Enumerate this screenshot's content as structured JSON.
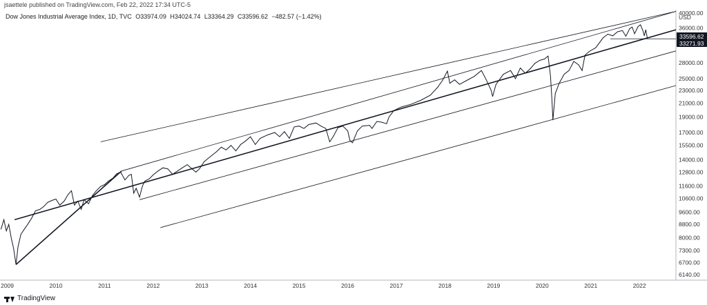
{
  "header": {
    "publisher": "jsaettele published on TradingView.com, Feb 22, 2022 17:34 UTC-5"
  },
  "legend": {
    "symbol": "Dow Jones Industrial Average Index, 1D, TVC",
    "open": "O33974.09",
    "high": "H34024.74",
    "low": "L33364.29",
    "close": "C33596.62",
    "change": "−482.57 (−1.42%)"
  },
  "footer": {
    "brand": "TradingView"
  },
  "chart_data": {
    "type": "line",
    "title": "Dow Jones Industrial Average Index, 1D, TVC",
    "log_scale": true,
    "currency": "USD",
    "x_range": [
      2008.85,
      2022.75
    ],
    "y_range": [
      5900,
      41000
    ],
    "y_ticks": [
      "40000.00",
      "36000.00",
      "33596.62",
      "33271.93",
      "28000.00",
      "25000.00",
      "23000.00",
      "21000.00",
      "19000.00",
      "17000.00",
      "15500.00",
      "14000.00",
      "12800.00",
      "11600.00",
      "10600.00",
      "9600.00",
      "8800.00",
      "8000.00",
      "7300.00",
      "6700.00",
      "6140.00"
    ],
    "y_tick_values": [
      40000,
      36000,
      28000,
      25000,
      23000,
      21000,
      19000,
      17000,
      15500,
      14000,
      12800,
      11600,
      10600,
      9600,
      8800,
      8000,
      7300,
      6700,
      6140
    ],
    "x_ticks": [
      "2009",
      "2010",
      "2011",
      "2012",
      "2013",
      "2014",
      "2015",
      "2016",
      "2017",
      "2018",
      "2019",
      "2020",
      "2021",
      "2022"
    ],
    "x_tick_values": [
      2009,
      2010,
      2011,
      2012,
      2013,
      2014,
      2015,
      2016,
      2017,
      2018,
      2019,
      2020,
      2021,
      2022
    ],
    "last_price_label": "33596.62",
    "horizontal_level_label": "33271.93",
    "series": [
      {
        "values": [
          [
            2008.87,
            8500
          ],
          [
            2008.93,
            9100
          ],
          [
            2008.98,
            8400
          ],
          [
            2009.03,
            8800
          ],
          [
            2009.08,
            8000
          ],
          [
            2009.13,
            7400
          ],
          [
            2009.18,
            6600
          ],
          [
            2009.22,
            7500
          ],
          [
            2009.28,
            8200
          ],
          [
            2009.35,
            8500
          ],
          [
            2009.42,
            8800
          ],
          [
            2009.5,
            9200
          ],
          [
            2009.58,
            9700
          ],
          [
            2009.67,
            9800
          ],
          [
            2009.75,
            10000
          ],
          [
            2009.83,
            10300
          ],
          [
            2009.92,
            10450
          ],
          [
            2010.0,
            10550
          ],
          [
            2010.08,
            10100
          ],
          [
            2010.17,
            10400
          ],
          [
            2010.25,
            10900
          ],
          [
            2010.32,
            11200
          ],
          [
            2010.38,
            10100
          ],
          [
            2010.45,
            10400
          ],
          [
            2010.52,
            9800
          ],
          [
            2010.58,
            10500
          ],
          [
            2010.67,
            10200
          ],
          [
            2010.75,
            10800
          ],
          [
            2010.83,
            11200
          ],
          [
            2010.92,
            11550
          ],
          [
            2011.0,
            11700
          ],
          [
            2011.08,
            12000
          ],
          [
            2011.17,
            12250
          ],
          [
            2011.25,
            12650
          ],
          [
            2011.33,
            12800
          ],
          [
            2011.42,
            12100
          ],
          [
            2011.5,
            12500
          ],
          [
            2011.55,
            12600
          ],
          [
            2011.6,
            11000
          ],
          [
            2011.65,
            11400
          ],
          [
            2011.72,
            10700
          ],
          [
            2011.78,
            11600
          ],
          [
            2011.83,
            12000
          ],
          [
            2011.92,
            12200
          ],
          [
            2012.0,
            12550
          ],
          [
            2012.1,
            12900
          ],
          [
            2012.2,
            13200
          ],
          [
            2012.3,
            13100
          ],
          [
            2012.4,
            12600
          ],
          [
            2012.5,
            12900
          ],
          [
            2012.6,
            13200
          ],
          [
            2012.7,
            13500
          ],
          [
            2012.8,
            13100
          ],
          [
            2012.88,
            12800
          ],
          [
            2012.95,
            13100
          ],
          [
            2013.05,
            13800
          ],
          [
            2013.15,
            14200
          ],
          [
            2013.3,
            14800
          ],
          [
            2013.4,
            15300
          ],
          [
            2013.5,
            15000
          ],
          [
            2013.6,
            15500
          ],
          [
            2013.7,
            14900
          ],
          [
            2013.8,
            15600
          ],
          [
            2013.9,
            16000
          ],
          [
            2014.0,
            16500
          ],
          [
            2014.1,
            15600
          ],
          [
            2014.2,
            16300
          ],
          [
            2014.35,
            16700
          ],
          [
            2014.5,
            17000
          ],
          [
            2014.6,
            16500
          ],
          [
            2014.7,
            17100
          ],
          [
            2014.8,
            16300
          ],
          [
            2014.9,
            17700
          ],
          [
            2015.0,
            17800
          ],
          [
            2015.1,
            17500
          ],
          [
            2015.2,
            18000
          ],
          [
            2015.35,
            18200
          ],
          [
            2015.45,
            17800
          ],
          [
            2015.55,
            17500
          ],
          [
            2015.63,
            15900
          ],
          [
            2015.7,
            16500
          ],
          [
            2015.8,
            17600
          ],
          [
            2015.9,
            17800
          ],
          [
            2016.0,
            17200
          ],
          [
            2016.05,
            16000
          ],
          [
            2016.1,
            15800
          ],
          [
            2016.2,
            17200
          ],
          [
            2016.3,
            17800
          ],
          [
            2016.45,
            17900
          ],
          [
            2016.5,
            17500
          ],
          [
            2016.6,
            18400
          ],
          [
            2016.7,
            18300
          ],
          [
            2016.8,
            18100
          ],
          [
            2016.85,
            19000
          ],
          [
            2016.95,
            19900
          ],
          [
            2017.1,
            20400
          ],
          [
            2017.3,
            20800
          ],
          [
            2017.5,
            21400
          ],
          [
            2017.7,
            22200
          ],
          [
            2017.85,
            23500
          ],
          [
            2017.95,
            24700
          ],
          [
            2018.05,
            26400
          ],
          [
            2018.1,
            24200
          ],
          [
            2018.2,
            24800
          ],
          [
            2018.3,
            24000
          ],
          [
            2018.45,
            24700
          ],
          [
            2018.6,
            25400
          ],
          [
            2018.75,
            26500
          ],
          [
            2018.85,
            24800
          ],
          [
            2018.95,
            23000
          ],
          [
            2018.98,
            22000
          ],
          [
            2019.05,
            24000
          ],
          [
            2019.2,
            25800
          ],
          [
            2019.35,
            26500
          ],
          [
            2019.45,
            25000
          ],
          [
            2019.55,
            27000
          ],
          [
            2019.65,
            26000
          ],
          [
            2019.75,
            26800
          ],
          [
            2019.85,
            27900
          ],
          [
            2019.95,
            28500
          ],
          [
            2020.05,
            28800
          ],
          [
            2020.12,
            29400
          ],
          [
            2020.17,
            25500
          ],
          [
            2020.2,
            21500
          ],
          [
            2020.22,
            18600
          ],
          [
            2020.27,
            22500
          ],
          [
            2020.35,
            24200
          ],
          [
            2020.45,
            25800
          ],
          [
            2020.55,
            26500
          ],
          [
            2020.65,
            28300
          ],
          [
            2020.75,
            27600
          ],
          [
            2020.82,
            26500
          ],
          [
            2020.88,
            29600
          ],
          [
            2020.97,
            30400
          ],
          [
            2021.1,
            31200
          ],
          [
            2021.25,
            33500
          ],
          [
            2021.35,
            34400
          ],
          [
            2021.45,
            34000
          ],
          [
            2021.55,
            35000
          ],
          [
            2021.65,
            35300
          ],
          [
            2021.72,
            33900
          ],
          [
            2021.8,
            35800
          ],
          [
            2021.85,
            36200
          ],
          [
            2021.9,
            34500
          ],
          [
            2021.97,
            36300
          ],
          [
            2022.02,
            36800
          ],
          [
            2022.07,
            35300
          ],
          [
            2022.1,
            34000
          ],
          [
            2022.13,
            35500
          ],
          [
            2022.15,
            34200
          ],
          [
            2022.16,
            33597
          ]
        ]
      }
    ],
    "drawings": [
      {
        "kind": "trendline",
        "points": [
          [
            2009.18,
            6600
          ],
          [
            2011.35,
            12900
          ]
        ]
      },
      {
        "kind": "trendline",
        "points": [
          [
            2009.15,
            9100
          ],
          [
            2022.75,
            35500
          ]
        ]
      },
      {
        "kind": "trendline",
        "points": [
          [
            2011.35,
            12900
          ],
          [
            2022.75,
            40500
          ]
        ]
      },
      {
        "kind": "trendline",
        "points": [
          [
            2011.72,
            10500
          ],
          [
            2022.75,
            30500
          ]
        ]
      },
      {
        "kind": "trendline",
        "points": [
          [
            2010.92,
            15900
          ],
          [
            2022.75,
            40500
          ]
        ]
      },
      {
        "kind": "trendline",
        "points": [
          [
            2012.15,
            8600
          ],
          [
            2022.75,
            23800
          ]
        ]
      },
      {
        "kind": "horizontal_ray",
        "points": [
          [
            2021.4,
            33271.93
          ],
          [
            2022.75,
            33271.93
          ]
        ]
      }
    ]
  }
}
